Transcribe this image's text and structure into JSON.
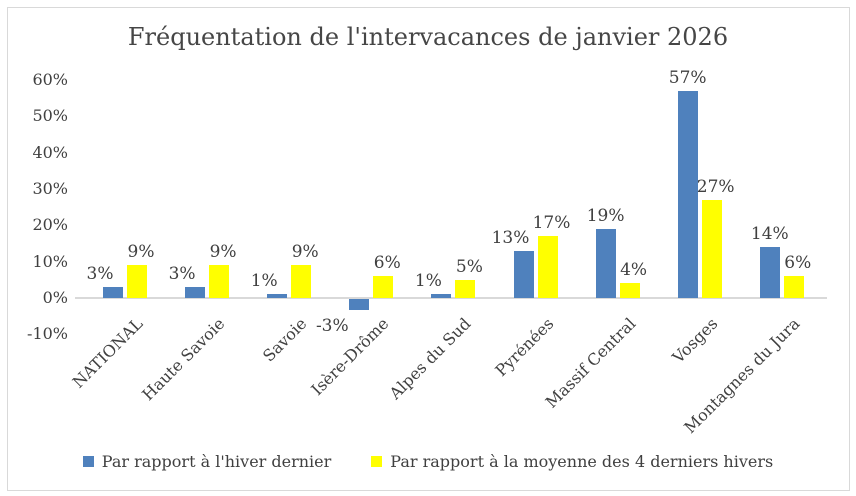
{
  "chart_data": {
    "type": "bar",
    "title": "Fréquentation de l'intervacances de janvier 2026",
    "categories": [
      "NATIONAL",
      "Haute Savoie",
      "Savoie",
      "Isère-Drôme",
      "Alpes du Sud",
      "Pyrénées",
      "Massif Central",
      "Vosges",
      "Montagnes du Jura"
    ],
    "series": [
      {
        "name": "Par rapport à l'hiver dernier",
        "color": "#4F81BD",
        "values": [
          3,
          3,
          1,
          -3,
          1,
          13,
          19,
          57,
          14
        ]
      },
      {
        "name": "Par rapport à la moyenne des 4 derniers hivers",
        "color": "#FFFF00",
        "values": [
          9,
          9,
          9,
          6,
          5,
          17,
          4,
          27,
          6
        ]
      }
    ],
    "value_suffix": "%",
    "ylabel": "",
    "xlabel": "",
    "ylim": [
      -10,
      60
    ],
    "y_ticks": [
      60,
      50,
      40,
      30,
      20,
      10,
      0,
      -10
    ],
    "grid": false,
    "legend_position": "bottom",
    "data_labels": "outside-end",
    "axis_color": "#D9D9D9",
    "text_color": "#404040"
  }
}
